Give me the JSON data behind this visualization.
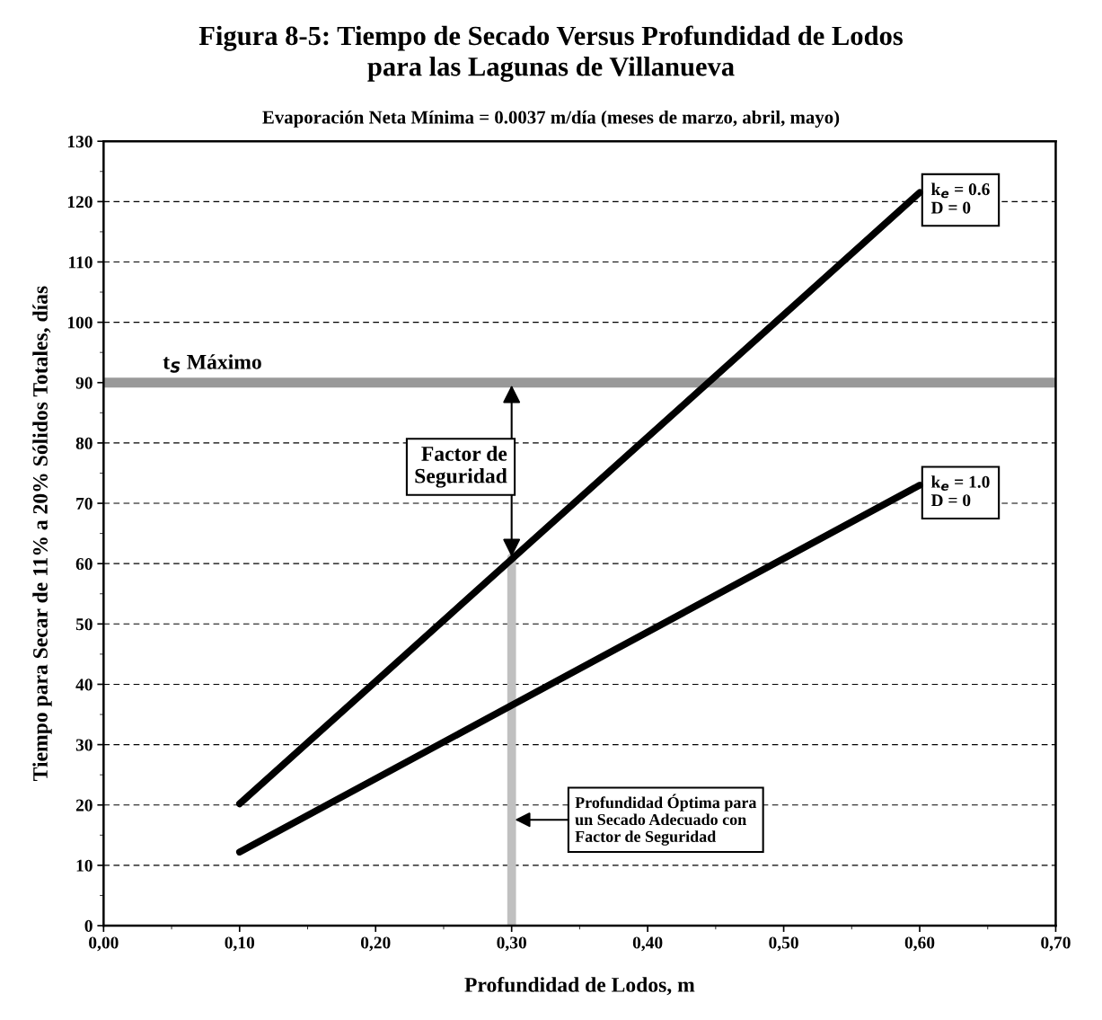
{
  "chart_data": {
    "type": "line",
    "title": "Figura 8-5: Tiempo de Secado Versus Profundidad de Lodos\npara las Lagunas de Villanueva",
    "subtitle": "Evaporación Neta Mínima = 0.0037 m/día (meses de marzo, abril, mayo)",
    "xlabel": "Profundidad de Lodos, m",
    "ylabel": "Tiempo para Secar de 11% a 20% Sólidos Totales, días",
    "series": [
      {
        "name": "k$_{e}$ = 0.6\nD = 0",
        "color": "#000000",
        "x": [
          0.1,
          0.6
        ],
        "values": [
          20.2,
          121.5
        ]
      },
      {
        "name": "k$_{e}$ = 1.0\nD = 0",
        "color": "#000000",
        "x": [
          0.1,
          0.6
        ],
        "values": [
          12.2,
          73
        ]
      },
      {
        "color": "#c0c0c0",
        "x": [
          0.3,
          0.3
        ],
        "values": [
          0,
          61
        ]
      }
    ],
    "ref_lines": [
      {
        "axis": "y",
        "value": 90,
        "label": "t$_{S}$ Máximo",
        "color": "#999999"
      }
    ],
    "annotations": [
      "Factor de\nSeguridad",
      "Profundidad Óptima para\nun Secado Adecuado con\nFactor de Seguridad"
    ],
    "xlim": [
      0,
      0.7
    ],
    "ylim": [
      0,
      130
    ],
    "xticks": [
      {
        "value": 0,
        "label": "0,00"
      },
      {
        "value": 0.1,
        "label": "0,10"
      },
      {
        "value": 0.2,
        "label": "0,20"
      },
      {
        "value": 0.3,
        "label": "0,30"
      },
      {
        "value": 0.4,
        "label": "0,40"
      },
      {
        "value": 0.5,
        "label": "0,50"
      },
      {
        "value": 0.6,
        "label": "0,60"
      },
      {
        "value": 0.7,
        "label": "0,70"
      }
    ],
    "yticks": [
      0,
      10,
      20,
      30,
      40,
      50,
      60,
      70,
      80,
      90,
      100,
      110,
      120,
      130
    ],
    "grid": "y",
    "legend": false,
    "marker": "none",
    "line_style": "solid"
  }
}
